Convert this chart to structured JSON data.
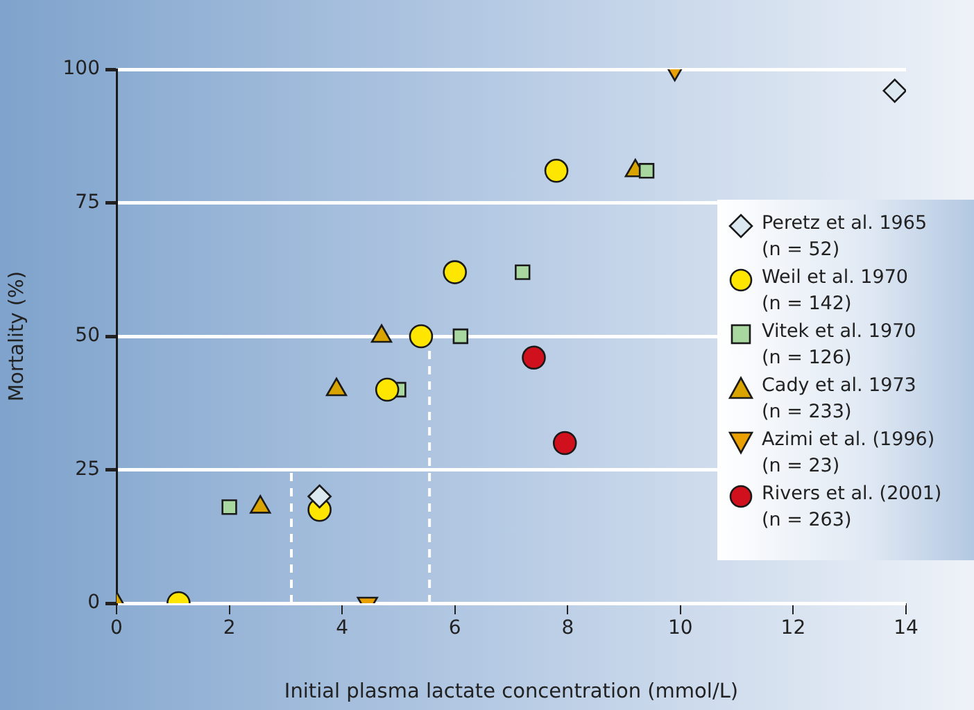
{
  "chart_data": {
    "type": "scatter",
    "xlabel": "Initial plasma lactate concentration (mmol/L)",
    "ylabel": "Mortality (%)",
    "xlim": [
      0,
      14
    ],
    "xticks": [
      0,
      2,
      4,
      6,
      8,
      10,
      12,
      14
    ],
    "ylim": [
      0,
      100
    ],
    "yticks": [
      0,
      25,
      50,
      75,
      100
    ],
    "grid": "y",
    "legend": "right",
    "series": [
      {
        "name": "Peretz et al. 1965\n(n = 52)",
        "color": "#dce8ef",
        "marker": "diamond",
        "x": [
          3.6,
          13.8
        ],
        "values": [
          20,
          96
        ]
      },
      {
        "name": "Weil et al. 1970\n(n = 142)",
        "color": "#ffe600",
        "marker": "circle",
        "x": [
          1.1,
          3.6,
          4.8,
          5.4,
          6.0,
          7.8
        ],
        "values": [
          0,
          17.5,
          40,
          50,
          62,
          81
        ]
      },
      {
        "name": "Vitek et al. 1970\n(n = 126)",
        "color": "#a8d8a0",
        "marker": "square",
        "x": [
          2.0,
          5.0,
          6.1,
          7.2,
          9.4
        ],
        "values": [
          18,
          40,
          50,
          62,
          81
        ]
      },
      {
        "name": "Cady et al. 1973\n(n = 233)",
        "color": "#d9a300",
        "marker": "triangle",
        "x": [
          0,
          2.55,
          3.9,
          4.7,
          9.2
        ],
        "values": [
          0,
          18,
          40,
          50,
          81
        ]
      },
      {
        "name": "Azimi et al. (1996)\n(n = 23)",
        "color": "#eaa000",
        "marker": "triangle-down",
        "x": [
          4.45,
          9.9
        ],
        "values": [
          0,
          100
        ]
      },
      {
        "name": "Rivers et al. (2001)\n(n = 263)",
        "color": "#d0101c",
        "marker": "circle",
        "x": [
          7.4,
          7.95
        ],
        "values": [
          46,
          30
        ]
      },
      {
        "type": "line",
        "color": "#ffffff",
        "line_style": "dashed",
        "marker": "none",
        "x": [
          3.1,
          3.1
        ],
        "values": [
          0,
          25
        ]
      },
      {
        "type": "line",
        "color": "#ffffff",
        "line_style": "dashed",
        "marker": "none",
        "x": [
          5.55,
          5.55
        ],
        "values": [
          0,
          50
        ]
      }
    ]
  }
}
